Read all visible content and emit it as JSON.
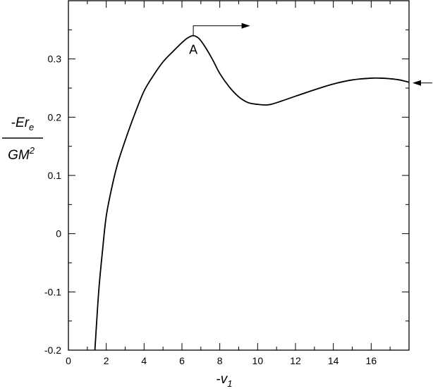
{
  "chart_data": {
    "type": "line",
    "xlabel": {
      "sign": "-",
      "var": "v",
      "sub": "1"
    },
    "ylabel": {
      "numerator": {
        "sign": "-",
        "var": "Er",
        "sub": "e"
      },
      "denominator": {
        "base": "GM",
        "sup": "2"
      }
    },
    "xlim": [
      0,
      18
    ],
    "ylim": [
      -0.2,
      0.4
    ],
    "x_major_ticks": [
      0,
      2,
      4,
      6,
      8,
      10,
      12,
      14,
      16
    ],
    "x_tick_labels": [
      "0",
      "2",
      "4",
      "6",
      "8",
      "10",
      "12",
      "14",
      "16"
    ],
    "x_minor_ticks": [
      1,
      3,
      5,
      7,
      9,
      11,
      13,
      15,
      17
    ],
    "y_major_ticks": [
      -0.2,
      -0.1,
      0,
      0.1,
      0.2,
      0.3
    ],
    "y_tick_labels": [
      "-0.2",
      "-0.1",
      "0",
      "0.1",
      "0.2",
      "0.3"
    ],
    "y_minor_ticks": [
      -0.15,
      -0.05,
      0.05,
      0.15,
      0.25,
      0.35
    ],
    "grid": false,
    "series": [
      {
        "x": [
          1.4,
          1.6,
          1.8,
          2.0,
          2.3,
          2.6,
          3.0,
          3.5,
          4.0,
          4.5,
          5.0,
          5.5,
          6.0,
          6.3,
          6.6,
          6.9,
          7.2,
          7.6,
          8.0,
          8.5,
          9.0,
          9.5,
          10.0,
          10.4,
          10.7,
          11.2,
          12.0,
          13.0,
          14.0,
          15.0,
          16.0,
          16.5,
          17.0,
          17.5,
          18.0
        ],
        "y": [
          -0.2,
          -0.1,
          -0.03,
          0.03,
          0.08,
          0.12,
          0.16,
          0.205,
          0.245,
          0.272,
          0.295,
          0.312,
          0.328,
          0.336,
          0.34,
          0.335,
          0.322,
          0.3,
          0.275,
          0.252,
          0.235,
          0.225,
          0.222,
          0.221,
          0.222,
          0.227,
          0.236,
          0.247,
          0.257,
          0.264,
          0.267,
          0.267,
          0.266,
          0.264,
          0.26
        ]
      }
    ],
    "annotations": [
      {
        "label": "A",
        "x": 6.6,
        "y": 0.34,
        "arrow_to_x": 9.6
      },
      {
        "label": "",
        "arrow_from_outside": true,
        "y": 0.26
      }
    ]
  }
}
